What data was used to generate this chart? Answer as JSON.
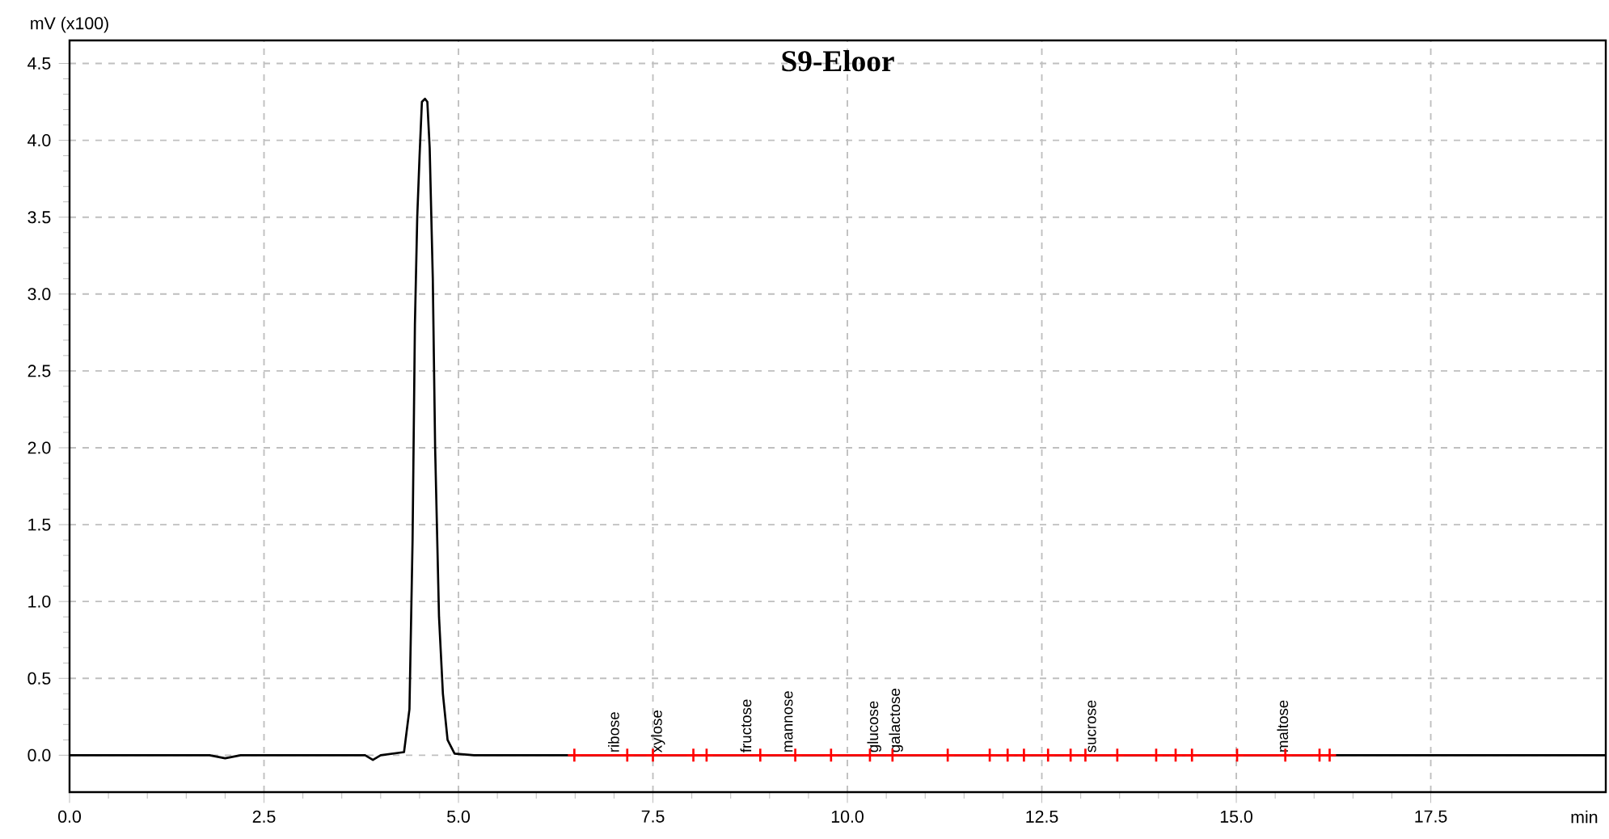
{
  "chart_data": {
    "type": "line",
    "title": "S9-Eloor",
    "xlabel": "min",
    "ylabel": "mV (x100)",
    "xlim": [
      0,
      19.75
    ],
    "ylim": [
      -0.24,
      4.65
    ],
    "xticks": [
      {
        "value": 0,
        "label": "0.0"
      },
      2.5,
      {
        "value": 5,
        "label": "5.0"
      },
      7.5,
      {
        "value": 10,
        "label": "10.0"
      },
      12.5,
      {
        "value": 15,
        "label": "15.0"
      },
      17.5
    ],
    "yticks": [
      {
        "value": 0,
        "label": "0.0"
      },
      0.5,
      {
        "value": 1,
        "label": "1.0"
      },
      1.5,
      {
        "value": 2,
        "label": "2.0"
      },
      2.5,
      {
        "value": 3,
        "label": "3.0"
      },
      3.5,
      {
        "value": 4,
        "label": "4.0"
      },
      4.5
    ],
    "grid": true,
    "series": [
      {
        "color": "#000000",
        "marker": "none",
        "x": [
          0,
          1.8,
          2.0,
          2.2,
          3.8,
          3.9,
          4.0,
          4.3,
          4.37,
          4.41,
          4.44,
          4.47,
          4.5,
          4.53,
          4.57,
          4.6,
          4.63,
          4.67,
          4.7,
          4.75,
          4.8,
          4.86,
          4.95,
          5.2,
          19.75
        ],
        "values": [
          0,
          0,
          -0.02,
          0,
          0,
          -0.03,
          0,
          0.02,
          0.3,
          1.4,
          2.8,
          3.5,
          3.9,
          4.25,
          4.27,
          4.25,
          3.95,
          3.1,
          2.0,
          0.9,
          0.4,
          0.1,
          0.01,
          0,
          0
        ]
      },
      {
        "color": "#ff0000",
        "marker": "cross",
        "x": [
          6.49,
          7.17,
          7.5,
          8.02,
          8.19,
          8.88,
          9.33,
          9.79,
          10.29,
          10.58,
          11.29,
          11.83,
          12.06,
          12.27,
          12.58,
          12.87,
          13.06,
          13.47,
          13.97,
          14.22,
          14.43,
          15.01,
          15.63,
          16.07,
          16.2
        ],
        "values": [
          0,
          0,
          0,
          0,
          0,
          0,
          0,
          0,
          0,
          0,
          0,
          0,
          0,
          0,
          0,
          0,
          0,
          0,
          0,
          0,
          0,
          0,
          0,
          0,
          0
        ]
      }
    ],
    "annotations": [
      {
        "text": "ribose",
        "x": 7.05,
        "y": 0
      },
      {
        "text": "xylose",
        "x": 7.62,
        "y": 0
      },
      {
        "text": "fructose",
        "x": 8.75,
        "y": 0
      },
      {
        "text": "mannose",
        "x": 9.3,
        "y": 0
      },
      {
        "text": "glucose",
        "x": 10.4,
        "y": 0
      },
      {
        "text": "galactose",
        "x": 10.68,
        "y": 0
      },
      {
        "text": "sucrose",
        "x": 13.2,
        "y": 0
      },
      {
        "text": "maltose",
        "x": 15.65,
        "y": 0
      }
    ]
  }
}
